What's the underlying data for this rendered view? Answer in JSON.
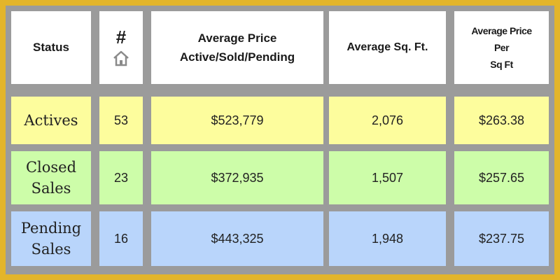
{
  "header": {
    "status": "Status",
    "count": "#",
    "avg_price_line1": "Average Price",
    "avg_price_line2": "Active/Sold/Pending",
    "avg_sqft": "Average Sq. Ft.",
    "price_per_sqft_line1": "Average Price",
    "price_per_sqft_line2": "Per",
    "price_per_sqft_line3": "Sq Ft",
    "count_icon": "house-icon"
  },
  "rows": [
    {
      "status_line1": "Actives",
      "status_line2": "",
      "count": "53",
      "avg_price": "$523,779",
      "avg_sqft": "2,076",
      "price_per_sqft": "$263.38"
    },
    {
      "status_line1": "Closed",
      "status_line2": "Sales",
      "count": "23",
      "avg_price": "$372,935",
      "avg_sqft": "1,507",
      "price_per_sqft": "$257.65"
    },
    {
      "status_line1": "Pending",
      "status_line2": "Sales",
      "count": "16",
      "avg_price": "$443,325",
      "avg_sqft": "1,948",
      "price_per_sqft": "$237.75"
    }
  ],
  "colors": {
    "frame": "#e3b52a",
    "grid": "#9b9b9b",
    "row_actives": "#fdfd9d",
    "row_closed": "#cdfda9",
    "row_pending": "#b9d5fb"
  }
}
